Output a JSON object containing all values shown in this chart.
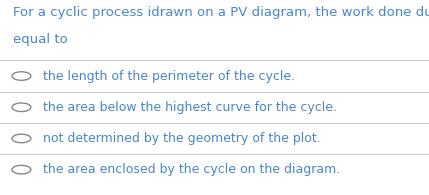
{
  "title_line1": "For a cyclic process idrawn on a PV diagram, the work done during a cycle is",
  "title_line2": "equal to",
  "title_color": "#4a86c8",
  "title_fontsize": 9.5,
  "options": [
    "the length of the perimeter of the cycle.",
    "the area below the highest curve for the cycle.",
    "not determined by the geometry of the plot.",
    "the area enclosed by the cycle on the diagram."
  ],
  "option_color": "#4a86c8",
  "option_fontsize": 9.0,
  "circle_color": "#888888",
  "line_color": "#cccccc",
  "background_color": "#ffffff",
  "fig_width": 4.29,
  "fig_height": 1.95
}
